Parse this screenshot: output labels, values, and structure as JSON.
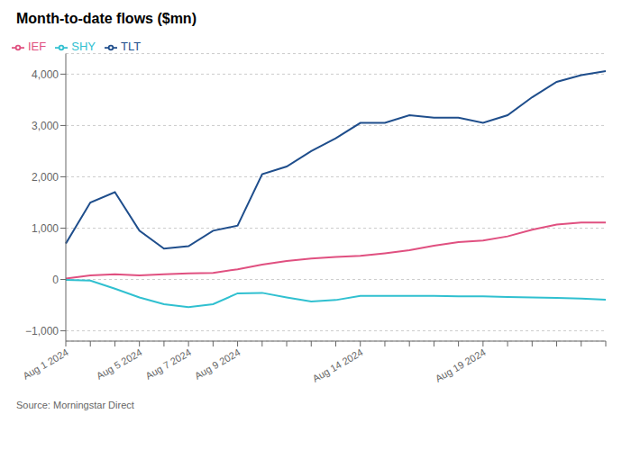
{
  "chart_data": {
    "type": "line",
    "title": "Month-to-date flows ($mn)",
    "annotations": [
      "Source: Morningstar Direct"
    ],
    "categories": [
      "Aug 1 2024",
      null,
      null,
      "Aug 5 2024",
      null,
      "Aug 7 2024",
      null,
      "Aug 9 2024",
      null,
      null,
      null,
      null,
      "Aug 14 2024",
      null,
      null,
      null,
      null,
      "Aug 19 2024",
      null,
      null,
      null,
      null,
      null
    ],
    "series": [
      {
        "name": "TLT",
        "color": "#1f4e8c",
        "values": [
          700,
          1500,
          1700,
          950,
          600,
          650,
          950,
          1050,
          2050,
          2200,
          2500,
          2750,
          3050,
          3050,
          3200,
          3150,
          3150,
          3050,
          3200,
          3550,
          3850,
          3980,
          4060
        ]
      },
      {
        "name": "IEF",
        "color": "#e05080",
        "values": [
          20,
          80,
          100,
          80,
          100,
          120,
          130,
          200,
          290,
          360,
          410,
          440,
          460,
          510,
          570,
          660,
          730,
          760,
          840,
          970,
          1070,
          1110,
          1110
        ]
      },
      {
        "name": "SHY",
        "color": "#30c0d0",
        "values": [
          -10,
          -20,
          -180,
          -350,
          -480,
          -540,
          -480,
          -270,
          -260,
          -350,
          -430,
          -400,
          -320,
          -320,
          -320,
          -320,
          -330,
          -330,
          -340,
          -350,
          -360,
          -370,
          -395
        ]
      }
    ],
    "ylim": [
      -1200,
      4400
    ],
    "yticks": [
      {
        "value": -1000,
        "label": "−1,000"
      },
      0,
      {
        "value": 1000,
        "label": "1,000"
      },
      {
        "value": 2000,
        "label": "2,000"
      },
      {
        "value": 3000,
        "label": "3,000"
      },
      {
        "value": 4000,
        "label": "4,000"
      }
    ],
    "grid": true,
    "legend": "top left"
  }
}
